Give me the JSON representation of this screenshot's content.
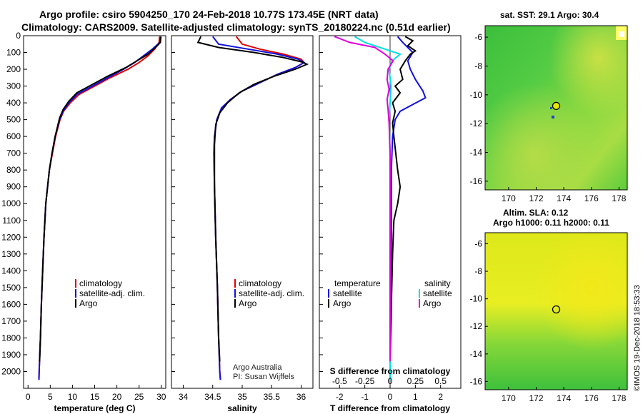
{
  "title": {
    "line1": "Argo profile: csiro 5904250_170 24-Feb-2018 10.77S 173.45E (NRT data)",
    "line2": "Climatology: CARS2009. Satellite-adjusted climatology: synTS_20180224.nc (0.51d earlier)"
  },
  "colors": {
    "climatology": "#e00000",
    "satellite": "#1010e0",
    "argo": "#000000",
    "salinity_satellite": "#00e0e0",
    "salinity_argo": "#e000e0"
  },
  "chart_data": [
    {
      "type": "line",
      "id": "temperature-panel",
      "xlabel": "temperature (deg C)",
      "ylabel": "",
      "xlim": [
        -1,
        31
      ],
      "ylim": [
        2100,
        0
      ],
      "xticks": [
        0,
        5,
        10,
        15,
        20,
        25,
        30
      ],
      "yticks": [
        0,
        100,
        200,
        300,
        400,
        500,
        600,
        700,
        800,
        900,
        1000,
        1100,
        1200,
        1300,
        1400,
        1500,
        1600,
        1700,
        1800,
        1900,
        2000
      ],
      "legend": [
        {
          "name": "climatology",
          "color": "#e00000"
        },
        {
          "name": "satellite-adj. clim.",
          "color": "#1010e0"
        },
        {
          "name": "Argo",
          "color": "#000000"
        }
      ],
      "series": [
        {
          "name": "climatology",
          "color": "#e00000",
          "points": [
            [
              29.6,
              5
            ],
            [
              29.5,
              40
            ],
            [
              28.5,
              80
            ],
            [
              27,
              120
            ],
            [
              25,
              160
            ],
            [
              22.5,
              200
            ],
            [
              18.5,
              250
            ],
            [
              15,
              300
            ],
            [
              11.5,
              350
            ],
            [
              9.5,
              400
            ],
            [
              8,
              450
            ],
            [
              7.2,
              500
            ],
            [
              6.2,
              600
            ],
            [
              5.5,
              700
            ],
            [
              4.8,
              800
            ],
            [
              4.4,
              900
            ],
            [
              4,
              1000
            ],
            [
              3.6,
              1200
            ],
            [
              3.3,
              1400
            ],
            [
              3,
              1600
            ],
            [
              2.8,
              1800
            ],
            [
              2.5,
              2000
            ],
            [
              2.45,
              2050
            ]
          ]
        },
        {
          "name": "satellite-adj. clim.",
          "color": "#1010e0",
          "points": [
            [
              29.8,
              5
            ],
            [
              29.7,
              40
            ],
            [
              28,
              80
            ],
            [
              26,
              120
            ],
            [
              24,
              160
            ],
            [
              21.5,
              200
            ],
            [
              18,
              250
            ],
            [
              14.5,
              300
            ],
            [
              11,
              350
            ],
            [
              9.2,
              400
            ],
            [
              7.9,
              450
            ],
            [
              7.1,
              500
            ],
            [
              6.1,
              600
            ],
            [
              5.4,
              700
            ],
            [
              4.8,
              800
            ],
            [
              4.4,
              900
            ],
            [
              4,
              1000
            ],
            [
              3.6,
              1200
            ],
            [
              3.3,
              1400
            ],
            [
              3,
              1600
            ],
            [
              2.8,
              1800
            ],
            [
              2.5,
              2000
            ],
            [
              2.45,
              2050
            ]
          ]
        },
        {
          "name": "Argo",
          "color": "#000000",
          "points": [
            [
              29.9,
              5
            ],
            [
              29.8,
              40
            ],
            [
              28.7,
              70
            ],
            [
              27,
              110
            ],
            [
              24.5,
              150
            ],
            [
              22,
              190
            ],
            [
              18,
              240
            ],
            [
              14.5,
              290
            ],
            [
              11,
              340
            ],
            [
              9.2,
              390
            ],
            [
              7.9,
              440
            ],
            [
              7.1,
              490
            ],
            [
              6.1,
              600
            ],
            [
              5.4,
              700
            ],
            [
              4.8,
              800
            ],
            [
              4.4,
              900
            ],
            [
              4,
              1000
            ],
            [
              3.6,
              1200
            ],
            [
              3.3,
              1400
            ],
            [
              3,
              1600
            ],
            [
              2.8,
              1800
            ],
            [
              2.6,
              1940
            ]
          ]
        }
      ]
    },
    {
      "type": "line",
      "id": "salinity-panel",
      "xlabel": "salinity",
      "ylabel": "",
      "xlim": [
        33.8,
        36.2
      ],
      "ylim": [
        2100,
        0
      ],
      "xticks": [
        34,
        34.5,
        35,
        35.5,
        36
      ],
      "xtick_labels": [
        "34",
        "34.5",
        "35",
        "35.5",
        "36"
      ],
      "legend": [
        {
          "name": "climatology",
          "color": "#e00000"
        },
        {
          "name": "satellite-adj. clim.",
          "color": "#1010e0"
        },
        {
          "name": "Argo",
          "color": "#000000"
        }
      ],
      "series": [
        {
          "name": "climatology",
          "color": "#e00000",
          "points": [
            [
              34.9,
              5
            ],
            [
              35.0,
              50
            ],
            [
              35.3,
              80
            ],
            [
              35.7,
              110
            ],
            [
              36.0,
              140
            ],
            [
              36.05,
              160
            ],
            [
              35.9,
              190
            ],
            [
              35.6,
              230
            ],
            [
              35.3,
              280
            ],
            [
              35.0,
              330
            ],
            [
              34.8,
              380
            ],
            [
              34.65,
              430
            ],
            [
              34.57,
              500
            ],
            [
              34.53,
              600
            ],
            [
              34.52,
              700
            ],
            [
              34.53,
              900
            ],
            [
              34.55,
              1200
            ],
            [
              34.58,
              1500
            ],
            [
              34.6,
              1800
            ],
            [
              34.62,
              2000
            ],
            [
              34.63,
              2050
            ]
          ]
        },
        {
          "name": "satellite-adj. clim.",
          "color": "#1010e0",
          "points": [
            [
              34.5,
              5
            ],
            [
              34.6,
              50
            ],
            [
              35.1,
              80
            ],
            [
              35.6,
              110
            ],
            [
              35.95,
              140
            ],
            [
              36.05,
              160
            ],
            [
              35.9,
              190
            ],
            [
              35.6,
              230
            ],
            [
              35.3,
              280
            ],
            [
              35.0,
              330
            ],
            [
              34.8,
              380
            ],
            [
              34.65,
              430
            ],
            [
              34.57,
              500
            ],
            [
              34.53,
              600
            ],
            [
              34.52,
              700
            ],
            [
              34.53,
              900
            ],
            [
              34.55,
              1200
            ],
            [
              34.58,
              1500
            ],
            [
              34.6,
              1800
            ],
            [
              34.62,
              2000
            ],
            [
              34.63,
              2050
            ]
          ]
        },
        {
          "name": "Argo",
          "color": "#000000",
          "points": [
            [
              34.3,
              5
            ],
            [
              34.25,
              40
            ],
            [
              34.6,
              70
            ],
            [
              35.2,
              100
            ],
            [
              35.7,
              130
            ],
            [
              36.0,
              155
            ],
            [
              36.1,
              170
            ],
            [
              35.9,
              200
            ],
            [
              35.55,
              240
            ],
            [
              35.2,
              290
            ],
            [
              34.95,
              340
            ],
            [
              34.75,
              400
            ],
            [
              34.62,
              460
            ],
            [
              34.55,
              530
            ],
            [
              34.53,
              650
            ],
            [
              34.53,
              900
            ],
            [
              34.55,
              1200
            ],
            [
              34.58,
              1500
            ],
            [
              34.6,
              1800
            ],
            [
              34.62,
              1940
            ]
          ]
        }
      ]
    },
    {
      "type": "line",
      "id": "difference-panel",
      "xlabel": "T difference from climatology",
      "xlabel_top": "S difference from climatology",
      "xlim": [
        -2.8,
        2.8
      ],
      "ylim": [
        2100,
        0
      ],
      "xticks": [
        -2,
        -1,
        0,
        1,
        2
      ],
      "xticks_top": [
        -0.5,
        -0.25,
        0,
        0.25,
        0.5
      ],
      "xtick_labels_top": [
        "-0.5",
        "-0.25",
        "0",
        "0.25",
        "0.5"
      ],
      "legend": [
        {
          "name": "temperature",
          "color": ""
        },
        {
          "name": "salinity",
          "color": ""
        },
        {
          "name": "satellite",
          "color": "#1010e0"
        },
        {
          "name": "Argo",
          "color": "#000000"
        },
        {
          "name": "satellite",
          "color": "#00e0e0"
        },
        {
          "name": "Argo",
          "color": "#e000e0"
        }
      ],
      "series": [
        {
          "name": "T satellite",
          "color": "#1010e0",
          "points": [
            [
              0.3,
              5
            ],
            [
              0.5,
              40
            ],
            [
              0.9,
              100
            ],
            [
              0.7,
              150
            ],
            [
              0.8,
              200
            ],
            [
              1.0,
              260
            ],
            [
              1.3,
              330
            ],
            [
              1.4,
              370
            ],
            [
              0.9,
              410
            ],
            [
              0.4,
              450
            ],
            [
              0.2,
              500
            ],
            [
              0.1,
              600
            ],
            [
              0.05,
              800
            ],
            [
              0.05,
              1200
            ],
            [
              0.0,
              1600
            ],
            [
              0.0,
              2050
            ]
          ]
        },
        {
          "name": "T Argo",
          "color": "#000000",
          "points": [
            [
              0.6,
              5
            ],
            [
              0.9,
              30
            ],
            [
              0.7,
              60
            ],
            [
              1.0,
              90
            ],
            [
              0.8,
              110
            ],
            [
              0.6,
              150
            ],
            [
              0.4,
              200
            ],
            [
              0.5,
              260
            ],
            [
              0.2,
              300
            ],
            [
              0.4,
              340
            ],
            [
              0.1,
              400
            ],
            [
              0.2,
              450
            ],
            [
              0.1,
              520
            ],
            [
              0.15,
              600
            ],
            [
              0.3,
              800
            ],
            [
              0.4,
              900
            ],
            [
              0.3,
              1000
            ],
            [
              0.15,
              1100
            ],
            [
              0.1,
              1300
            ],
            [
              0.05,
              1600
            ],
            [
              0.0,
              1940
            ]
          ]
        },
        {
          "name": "S satellite",
          "color": "#00e0e0",
          "points": [
            [
              -0.35,
              5
            ],
            [
              -0.25,
              40
            ],
            [
              -0.05,
              80
            ],
            [
              0.1,
              110
            ],
            [
              0.02,
              150
            ],
            [
              -0.01,
              200
            ],
            [
              0.01,
              300
            ],
            [
              0.0,
              400
            ],
            [
              -0.01,
              500
            ],
            [
              0.0,
              700
            ],
            [
              0.0,
              1000
            ],
            [
              0.0,
              1500
            ],
            [
              0.0,
              2050
            ]
          ]
        },
        {
          "name": "S Argo",
          "color": "#e000e0",
          "points": [
            [
              -0.55,
              5
            ],
            [
              -0.4,
              40
            ],
            [
              -0.15,
              70
            ],
            [
              -0.05,
              110
            ],
            [
              0.03,
              150
            ],
            [
              -0.02,
              200
            ],
            [
              -0.03,
              260
            ],
            [
              -0.01,
              320
            ],
            [
              -0.03,
              380
            ],
            [
              -0.02,
              440
            ],
            [
              -0.01,
              520
            ],
            [
              0.0,
              700
            ],
            [
              0.0,
              1000
            ],
            [
              0.0,
              1500
            ],
            [
              0.0,
              1940
            ]
          ]
        }
      ]
    },
    {
      "type": "heatmap",
      "id": "sst-map",
      "title": "sat. SST: 29.1 Argo: 30.4",
      "xlim": [
        168.3,
        178.6
      ],
      "ylim": [
        -16.6,
        -5.2
      ],
      "xticks": [
        170,
        172,
        174,
        176,
        178
      ],
      "yticks": [
        -6,
        -8,
        -10,
        -12,
        -14,
        -16
      ],
      "argo_position": {
        "lon": 173.45,
        "lat": -10.77
      }
    },
    {
      "type": "heatmap",
      "id": "sla-map",
      "title": "Altim. SLA: 0.12",
      "subtitle": "Argo h1000: 0.11 h2000: 0.11",
      "xlim": [
        168.3,
        178.6
      ],
      "ylim": [
        -16.6,
        -5.2
      ],
      "xticks": [
        170,
        172,
        174,
        176,
        178
      ],
      "yticks": [
        -6,
        -8,
        -10,
        -12,
        -14,
        -16
      ],
      "argo_position": {
        "lon": 173.45,
        "lat": -10.77
      }
    }
  ],
  "footer": {
    "credit1": "Argo Australia",
    "credit2": "PI: Susan Wijffels",
    "stamp": "©IMOS 19-Dec-2018 18:53:33"
  }
}
